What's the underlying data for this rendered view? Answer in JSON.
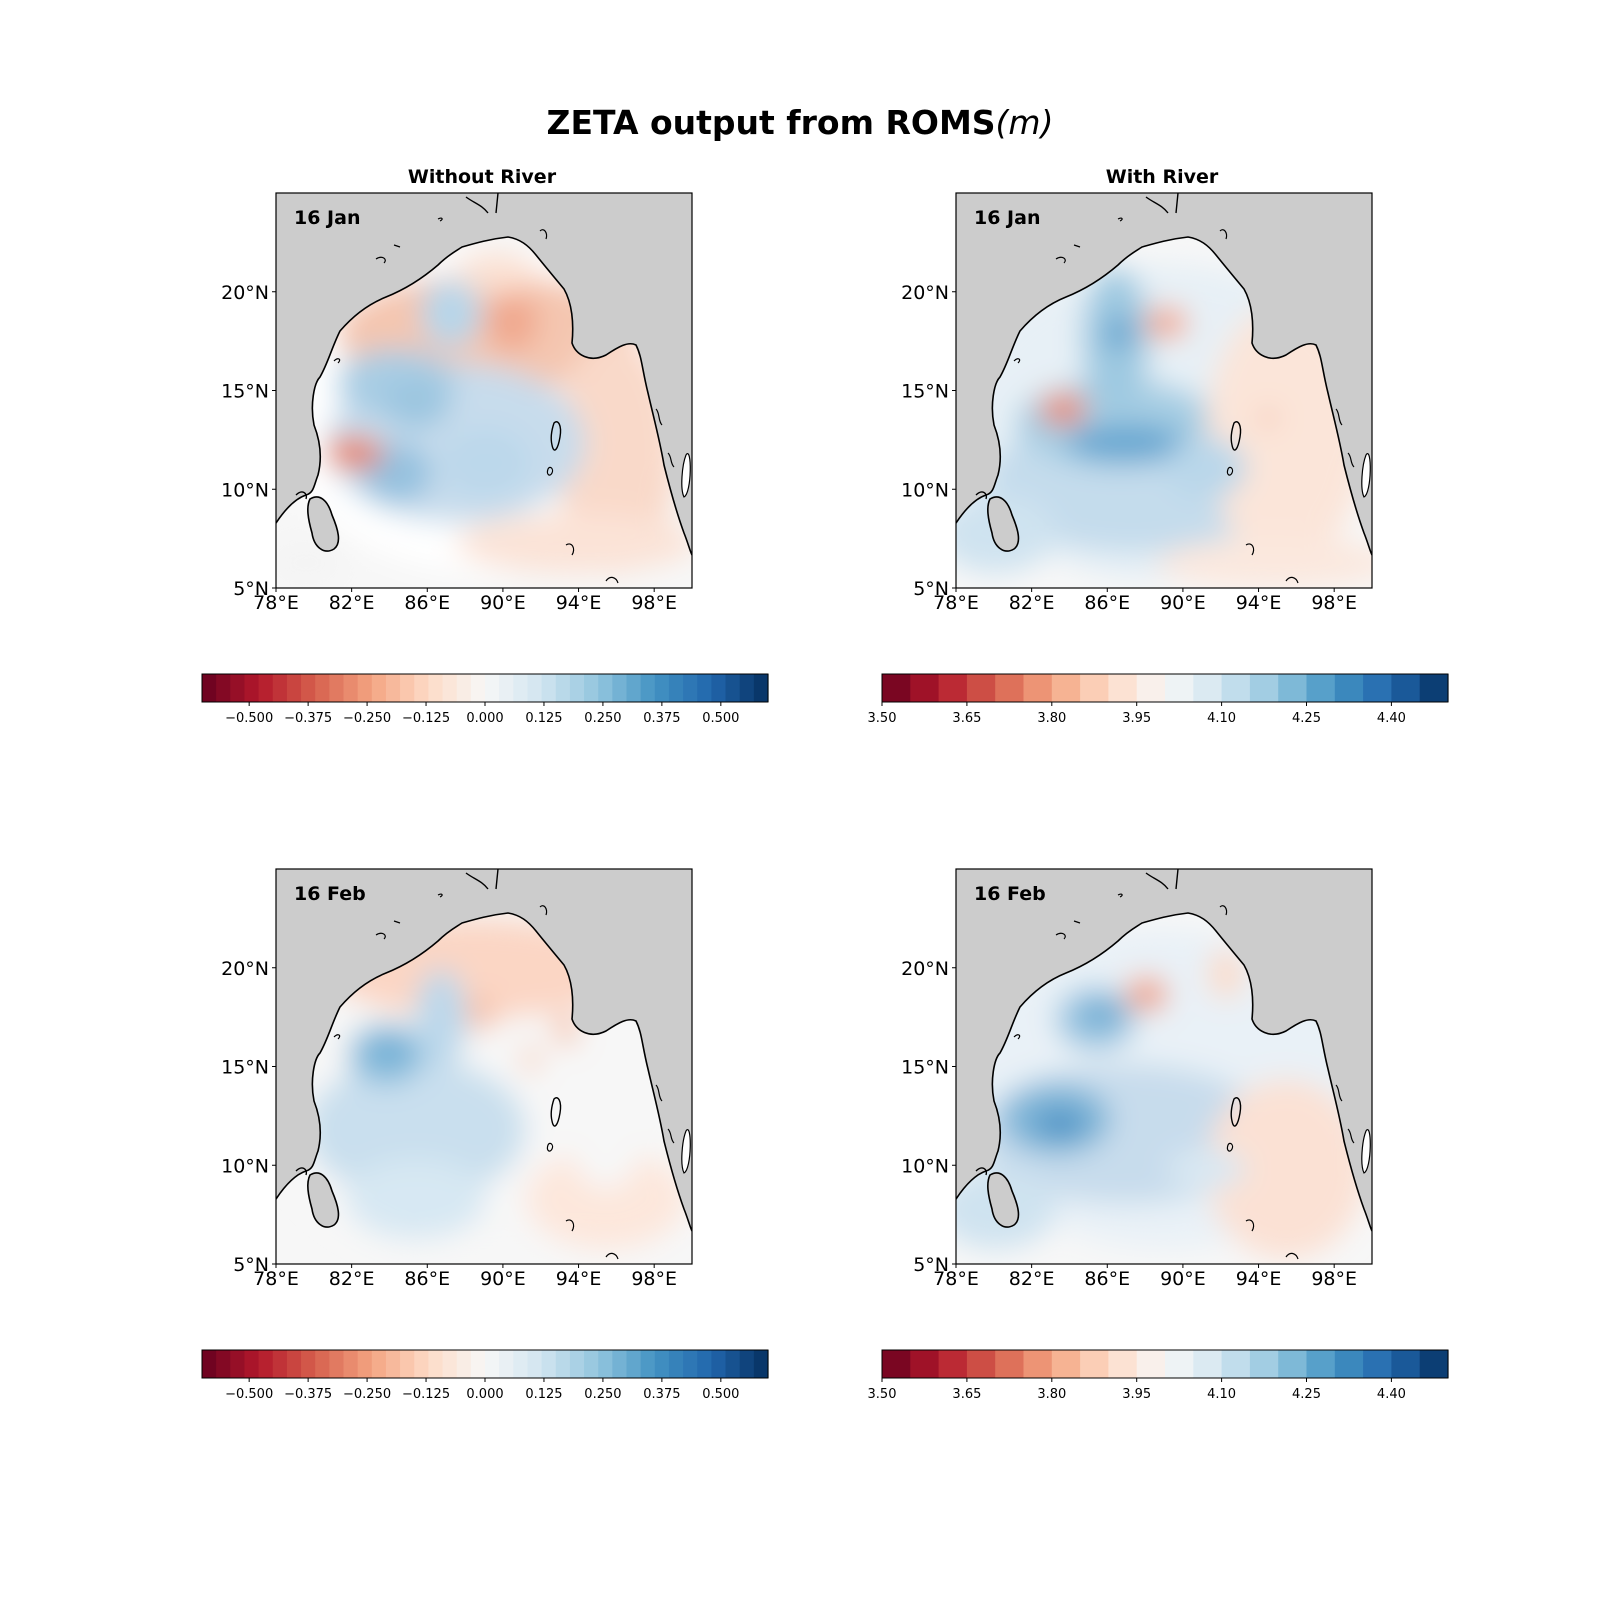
{
  "figure": {
    "title": "ZETA output from ROMS",
    "title_unit": "m"
  },
  "columns": [
    {
      "title": "Without River"
    },
    {
      "title": "With River"
    }
  ],
  "axes": {
    "lon_ticks": [
      "78°E",
      "82°E",
      "86°E",
      "90°E",
      "94°E",
      "98°E"
    ],
    "lat_ticks": [
      "20°N",
      "15°N",
      "10°N",
      "5°N"
    ],
    "lon_range": [
      78,
      100
    ],
    "lat_range": [
      5,
      25
    ]
  },
  "colors": {
    "land": "#cccccc",
    "coast": "#000000",
    "colormap": "RdBu"
  },
  "panels": [
    {
      "date": "16 Jan",
      "column": "Without River"
    },
    {
      "date": "16 Jan",
      "column": "With River"
    },
    {
      "date": "16 Feb",
      "column": "Without River"
    },
    {
      "date": "16 Feb",
      "column": "With River"
    }
  ],
  "colorbars": {
    "without_river": {
      "range": [
        -0.6,
        0.6
      ],
      "levels": 40,
      "ticks": [
        "−0.500",
        "−0.375",
        "−0.250",
        "−0.125",
        "0.000",
        "0.125",
        "0.250",
        "0.375",
        "0.500"
      ],
      "tick_values": [
        -0.5,
        -0.375,
        -0.25,
        -0.125,
        0,
        0.125,
        0.25,
        0.375,
        0.5
      ]
    },
    "with_river": {
      "range": [
        3.5,
        4.5
      ],
      "levels": 20,
      "ticks": [
        "3.50",
        "3.65",
        "3.80",
        "3.95",
        "4.10",
        "4.25",
        "4.40"
      ],
      "tick_values": [
        3.5,
        3.65,
        3.8,
        3.95,
        4.1,
        4.25,
        4.4
      ]
    }
  }
}
